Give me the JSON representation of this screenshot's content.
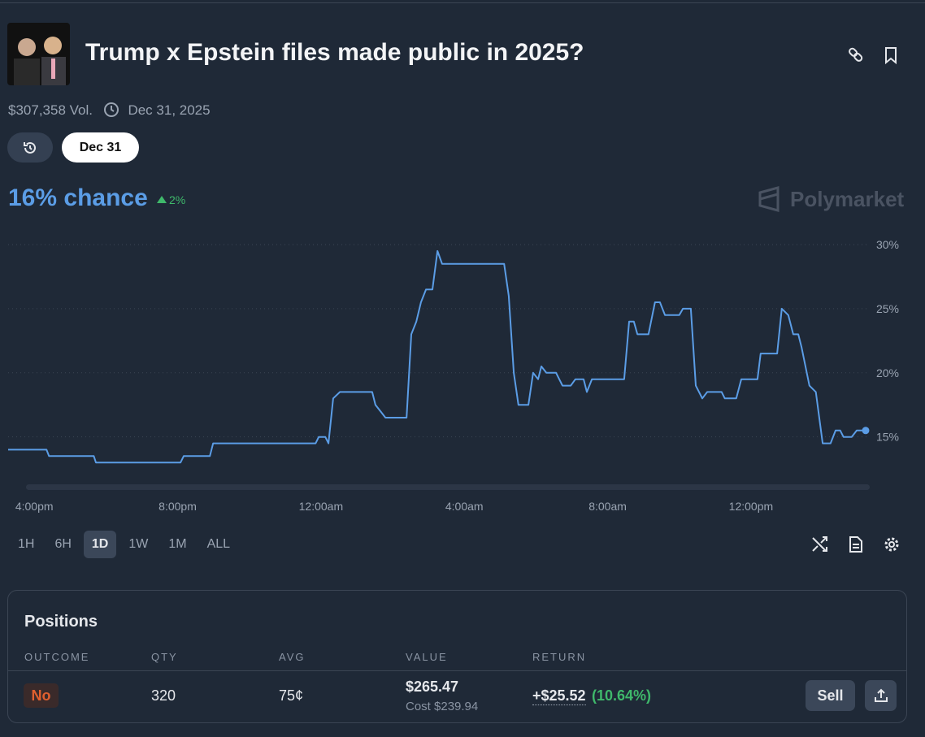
{
  "header": {
    "title": "Trump x Epstein files made public in 2025?",
    "volume": "$307,358 Vol.",
    "end_date": "Dec 31, 2025",
    "date_pill": "Dec 31",
    "chance": "16% chance",
    "change": "2%",
    "brand": "Polymarket"
  },
  "chart_data": {
    "type": "line",
    "color": "#5b9de6",
    "grid": true,
    "x": [
      15.27,
      16.34,
      16.41,
      17.66,
      17.72,
      20.08,
      20.17,
      20.9,
      20.99,
      23.85,
      23.94,
      24.12,
      24.21,
      24.34,
      24.53,
      25.43,
      25.52,
      25.66,
      25.8,
      26.39,
      26.52,
      26.66,
      26.79,
      26.93,
      27.11,
      27.25,
      27.38,
      29.11,
      29.24,
      29.38,
      29.51,
      29.79,
      29.92,
      30.06,
      30.15,
      30.29,
      30.56,
      30.74,
      30.97,
      31.1,
      31.33,
      31.42,
      31.56,
      32.46,
      32.6,
      32.73,
      32.83,
      33.14,
      33.32,
      33.46,
      33.6,
      34.0,
      34.1,
      34.32,
      34.46,
      34.64,
      34.78,
      35.18,
      35.27,
      35.59,
      35.73,
      36.18,
      36.27,
      36.73,
      36.86,
      37.04,
      37.18,
      37.32,
      37.41,
      37.63,
      37.81,
      38.0,
      38.22,
      38.36,
      38.49,
      38.58,
      38.81,
      38.95,
      39.2
    ],
    "values": [
      14,
      14,
      13.5,
      13.5,
      13,
      13,
      13.5,
      13.5,
      14.5,
      14.5,
      15,
      15,
      14.5,
      18,
      18.5,
      18.5,
      17.5,
      17,
      16.5,
      16.5,
      23,
      24,
      25.5,
      26.5,
      26.5,
      29.5,
      28.5,
      28.5,
      26,
      20,
      17.5,
      17.5,
      20,
      19.5,
      20.5,
      20,
      20,
      19,
      19,
      19.5,
      19.5,
      18.5,
      19.5,
      19.5,
      24,
      24,
      23,
      23,
      25.5,
      25.5,
      24.5,
      24.5,
      25,
      25,
      19,
      18,
      18.5,
      18.5,
      18,
      18,
      19.5,
      19.5,
      21.5,
      21.5,
      25,
      24.5,
      23,
      23,
      22,
      19,
      18.5,
      14.5,
      14.5,
      15.5,
      15.5,
      15,
      15,
      15.5,
      15.5
    ],
    "xlim": [
      15.27,
      39.2
    ],
    "xticks": [
      {
        "value": 16,
        "label": "4:00pm"
      },
      {
        "value": 20,
        "label": "8:00pm"
      },
      {
        "value": 24,
        "label": "12:00am"
      },
      {
        "value": 28,
        "label": "4:00am"
      },
      {
        "value": 32,
        "label": "8:00am"
      },
      {
        "value": 36,
        "label": "12:00pm"
      }
    ],
    "ylim": [
      12,
      30
    ],
    "yticks": [
      {
        "value": 15,
        "label": "15%"
      },
      {
        "value": 20,
        "label": "20%"
      },
      {
        "value": 25,
        "label": "25%"
      },
      {
        "value": 30,
        "label": "30%"
      }
    ]
  },
  "ranges": [
    {
      "label": "1H"
    },
    {
      "label": "6H"
    },
    {
      "label": "1D",
      "active": true
    },
    {
      "label": "1W"
    },
    {
      "label": "1M"
    },
    {
      "label": "ALL"
    }
  ],
  "positions": {
    "title": "Positions",
    "columns": [
      "OUTCOME",
      "QTY",
      "AVG",
      "VALUE",
      "RETURN"
    ],
    "row": {
      "outcome": "No",
      "qty": "320",
      "avg": "75¢",
      "value": "$265.47",
      "cost": "Cost $239.94",
      "return": "+$25.52",
      "return_pct": "(10.64%)",
      "action": "Sell"
    }
  }
}
